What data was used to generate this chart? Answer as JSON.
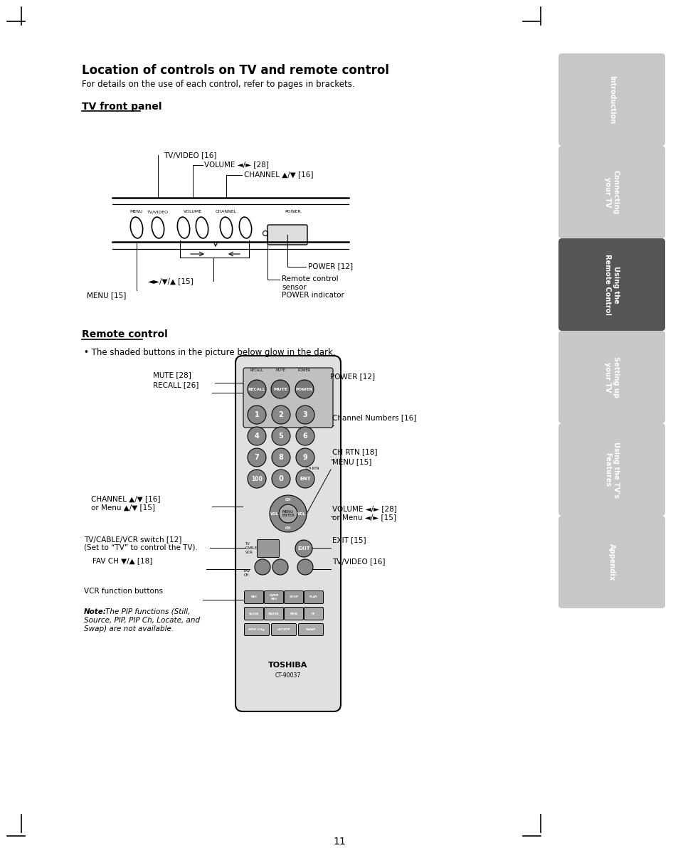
{
  "title": "Location of controls on TV and remote control",
  "subtitle": "For details on the use of each control, refer to pages in brackets.",
  "section1": "TV front panel",
  "section2": "Remote control",
  "bullet": "The shaded buttons in the picture below glow in the dark.",
  "page_number": "11",
  "tab_labels": [
    "Introduction",
    "Connecting\nyour TV",
    "Using the\nRemote Control",
    "Setting up\nyour TV",
    "Using the TV's\nFeatures",
    "Appendix"
  ],
  "tab_active": 2,
  "tab_colors": [
    "#c8c8c8",
    "#c8c8c8",
    "#555555",
    "#c8c8c8",
    "#c8c8c8",
    "#c8c8c8"
  ],
  "bg_color": "#ffffff"
}
